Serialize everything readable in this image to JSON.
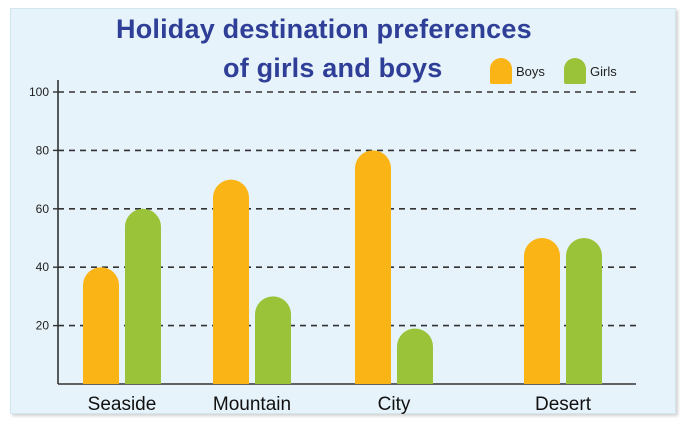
{
  "chart_data": {
    "type": "bar",
    "title_line1": "Holiday destination preferences",
    "title_line2": "of girls and boys",
    "categories": [
      "Seaside",
      "Mountain",
      "City",
      "Desert"
    ],
    "series": [
      {
        "name": "Boys",
        "color": "#fbb415",
        "values": [
          40,
          70,
          80,
          50
        ]
      },
      {
        "name": "Girls",
        "color": "#9ac33a",
        "values": [
          60,
          30,
          19,
          50
        ]
      }
    ],
    "yticks": [
      "20",
      "40",
      "60",
      "80",
      "100"
    ],
    "ylim": [
      0,
      100
    ],
    "grid": true,
    "legend_position": "top-right"
  }
}
